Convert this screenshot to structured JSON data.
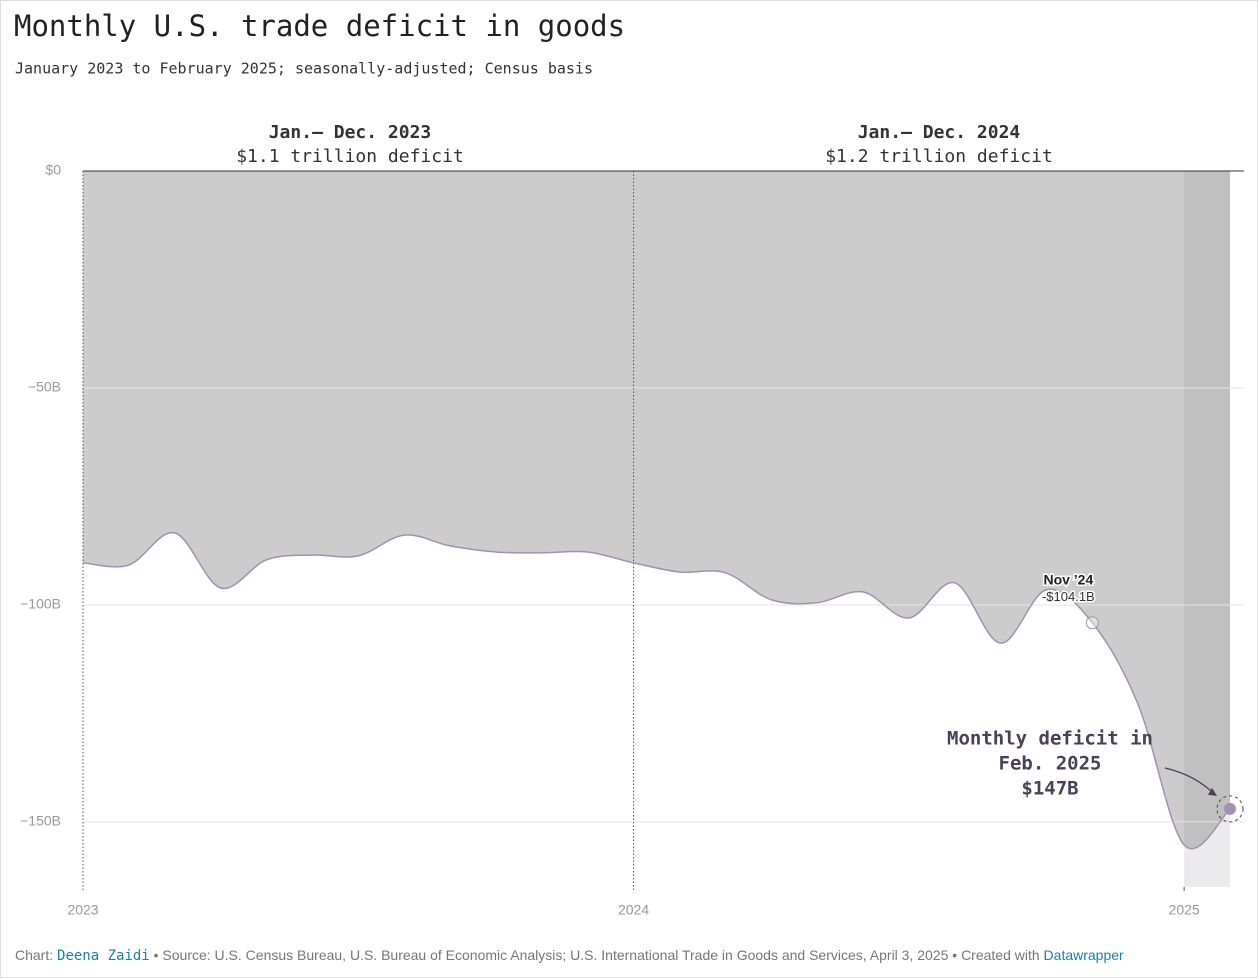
{
  "chart_data": {
    "type": "area",
    "title": "Monthly U.S. trade deficit in goods",
    "subtitle": "January 2023 to February 2025; seasonally-adjusted; Census basis",
    "periods": [
      {
        "title": "Jan.– Dec. 2023",
        "subtitle": "$1.1 trillion deficit"
      },
      {
        "title": "Jan.– Dec. 2024",
        "subtitle": "$1.2 trillion deficit"
      }
    ],
    "x": [
      "2023-01",
      "2023-02",
      "2023-03",
      "2023-04",
      "2023-05",
      "2023-06",
      "2023-07",
      "2023-08",
      "2023-09",
      "2023-10",
      "2023-11",
      "2023-12",
      "2024-01",
      "2024-02",
      "2024-03",
      "2024-04",
      "2024-05",
      "2024-06",
      "2024-07",
      "2024-08",
      "2024-09",
      "2024-10",
      "2024-11",
      "2024-12",
      "2025-01",
      "2025-02"
    ],
    "series": [
      {
        "name": "Trade deficit in goods",
        "color": "#a58fb5",
        "values": [
          -90.3,
          -90.8,
          -83.4,
          -96.1,
          -89.6,
          -88.5,
          -88.7,
          -83.9,
          -86.4,
          -87.8,
          -88.0,
          -87.8,
          -90.3,
          -92.4,
          -92.6,
          -98.8,
          -99.5,
          -97.0,
          -103.0,
          -94.9,
          -108.8,
          -96.5,
          -104.1,
          -123.0,
          -155.3,
          -147
        ]
      }
    ],
    "area_color": "#cccccc",
    "xlim": [
      "2023-01",
      "2025-02"
    ],
    "xticks": [
      2023,
      2024,
      2025
    ],
    "ylim": [
      -165,
      0
    ],
    "yticks": [
      {
        "value": 0,
        "label": "$0"
      },
      {
        "value": -50,
        "label": "−50B"
      },
      {
        "value": -100,
        "label": "−100B"
      },
      {
        "value": -150,
        "label": "−150B"
      }
    ],
    "grid": true,
    "annotations": [
      {
        "index": 22,
        "title": "Nov ’24",
        "text": "-$104.1B"
      },
      {
        "index": 25,
        "lines": [
          "Monthly deficit in",
          "Feb. 2025",
          "$147B"
        ]
      }
    ],
    "footer": {
      "prefix": "Chart: ",
      "author": "Deena Zaidi",
      "source": " • Source: U.S. Census Bureau, U.S. Bureau of Economic Analysis; U.S. International Trade in Goods and Services, April 3, 2025 • Created with ",
      "tool": "Datawrapper"
    }
  }
}
